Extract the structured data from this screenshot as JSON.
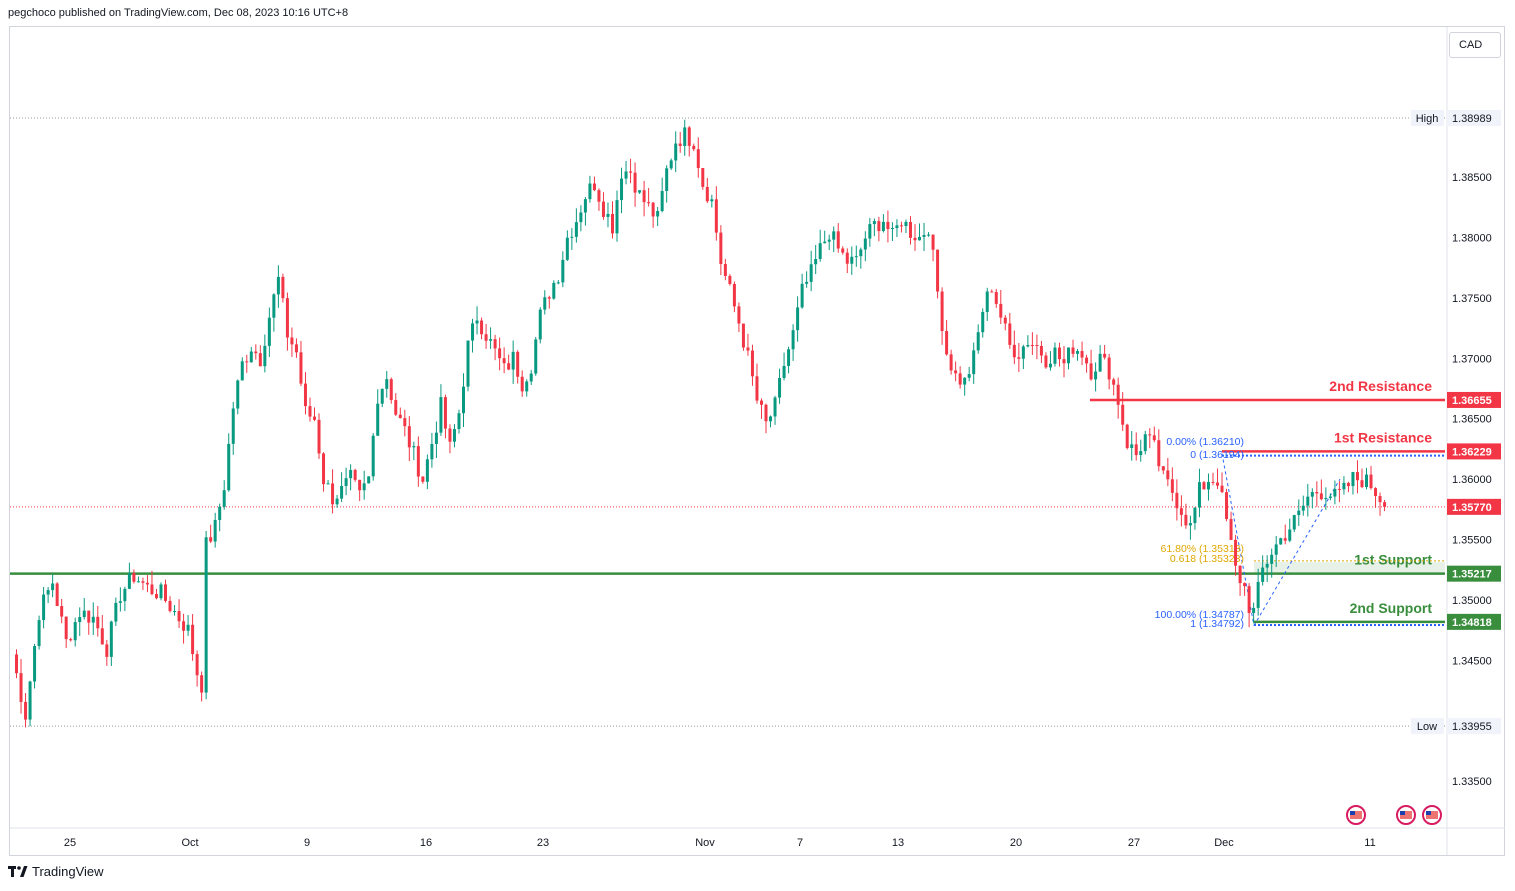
{
  "header": {
    "publish_text": "pegchoco published on TradingView.com, Dec 08, 2023 10:16 UTC+8",
    "currency": "CAD"
  },
  "footer": {
    "brand": "TradingView"
  },
  "colors": {
    "bull": "#089981",
    "bear": "#f23645",
    "resistance": "#f23645",
    "support": "#388e3c",
    "fib_blue": "#2962ff",
    "fib_gold": "#e0a800",
    "axis_text": "#131722",
    "high_low_line": "#9598a1"
  },
  "chart_data": {
    "type": "candlestick",
    "symbol_currency": "CAD",
    "y_axis": {
      "ylim": [
        1.3315,
        1.4065
      ],
      "tick_labels": [
        "1.38500",
        "1.38000",
        "1.37500",
        "1.37000",
        "1.36500",
        "1.36000",
        "1.35500",
        "1.35000",
        "1.34500",
        "1.33500"
      ]
    },
    "x_axis": {
      "tick_labels": [
        "25",
        "Oct",
        "9",
        "16",
        "23",
        "Nov",
        "7",
        "13",
        "20",
        "27",
        "Dec",
        "11"
      ]
    },
    "high": {
      "label": "High",
      "value": "1.38989"
    },
    "low": {
      "label": "Low",
      "value": "1.33955"
    },
    "current_price": "1.35770",
    "levels": [
      {
        "name": "2nd Resistance",
        "value": "1.36655",
        "kind": "resistance"
      },
      {
        "name": "1st Resistance",
        "value": "1.36229",
        "kind": "resistance"
      },
      {
        "name": "1st Support",
        "value": "1.35217",
        "kind": "support"
      },
      {
        "name": "2nd Support",
        "value": "1.34818",
        "kind": "support"
      }
    ],
    "fibonacci": [
      {
        "label": "0.00% (1.36210)",
        "color": "blue"
      },
      {
        "label": "0 (1.36194)",
        "color": "blue"
      },
      {
        "label": "61.80% (1.35313)",
        "color": "gold"
      },
      {
        "label": "0.618 (1.35323)",
        "color": "gold"
      },
      {
        "label": "100.00% (1.34787)",
        "color": "blue"
      },
      {
        "label": "1 (1.34792)",
        "color": "blue"
      }
    ],
    "price_path": [
      [
        0,
        1.3455
      ],
      [
        3,
        1.3405
      ],
      [
        6,
        1.349
      ],
      [
        9,
        1.3515
      ],
      [
        12,
        1.3465
      ],
      [
        15,
        1.349
      ],
      [
        18,
        1.3485
      ],
      [
        21,
        1.346
      ],
      [
        24,
        1.3505
      ],
      [
        27,
        1.352
      ],
      [
        30,
        1.351
      ],
      [
        33,
        1.3505
      ],
      [
        36,
        1.349
      ],
      [
        39,
        1.3475
      ],
      [
        41,
        1.344
      ],
      [
        42,
        1.343
      ],
      [
        43,
        1.3545
      ],
      [
        45,
        1.356
      ],
      [
        47,
        1.3595
      ],
      [
        49,
        1.366
      ],
      [
        51,
        1.3695
      ],
      [
        53,
        1.371
      ],
      [
        55,
        1.37
      ],
      [
        57,
        1.3735
      ],
      [
        59,
        1.3765
      ],
      [
        61,
        1.372
      ],
      [
        63,
        1.3705
      ],
      [
        65,
        1.3655
      ],
      [
        67,
        1.365
      ],
      [
        69,
        1.36
      ],
      [
        71,
        1.3585
      ],
      [
        73,
        1.359
      ],
      [
        75,
        1.36
      ],
      [
        77,
        1.3585
      ],
      [
        79,
        1.36
      ],
      [
        81,
        1.367
      ],
      [
        83,
        1.3685
      ],
      [
        85,
        1.3655
      ],
      [
        87,
        1.364
      ],
      [
        89,
        1.362
      ],
      [
        91,
        1.36
      ],
      [
        93,
        1.363
      ],
      [
        95,
        1.366
      ],
      [
        97,
        1.3625
      ],
      [
        99,
        1.3655
      ],
      [
        101,
        1.371
      ],
      [
        103,
        1.3735
      ],
      [
        105,
        1.372
      ],
      [
        107,
        1.3705
      ],
      [
        109,
        1.369
      ],
      [
        111,
        1.37
      ],
      [
        113,
        1.368
      ],
      [
        115,
        1.3695
      ],
      [
        117,
        1.3735
      ],
      [
        119,
        1.3755
      ],
      [
        121,
        1.377
      ],
      [
        123,
        1.38
      ],
      [
        125,
        1.3815
      ],
      [
        127,
        1.3835
      ],
      [
        129,
        1.3845
      ],
      [
        131,
        1.3825
      ],
      [
        133,
        1.381
      ],
      [
        135,
        1.3855
      ],
      [
        137,
        1.3855
      ],
      [
        139,
        1.3835
      ],
      [
        141,
        1.3825
      ],
      [
        143,
        1.3815
      ],
      [
        145,
        1.3855
      ],
      [
        147,
        1.388
      ],
      [
        149,
        1.3885
      ],
      [
        151,
        1.388
      ],
      [
        153,
        1.3845
      ],
      [
        155,
        1.383
      ],
      [
        157,
        1.378
      ],
      [
        159,
        1.3755
      ],
      [
        161,
        1.373
      ],
      [
        163,
        1.37
      ],
      [
        165,
        1.3665
      ],
      [
        167,
        1.3645
      ],
      [
        169,
        1.366
      ],
      [
        171,
        1.3695
      ],
      [
        173,
        1.372
      ],
      [
        175,
        1.3755
      ],
      [
        177,
        1.377
      ],
      [
        179,
        1.379
      ],
      [
        181,
        1.3805
      ],
      [
        183,
        1.379
      ],
      [
        185,
        1.378
      ],
      [
        187,
        1.378
      ],
      [
        189,
        1.38
      ],
      [
        191,
        1.381
      ],
      [
        193,
        1.3815
      ],
      [
        195,
        1.38
      ],
      [
        197,
        1.3815
      ],
      [
        199,
        1.3805
      ],
      [
        201,
        1.38
      ],
      [
        203,
        1.381
      ],
      [
        205,
        1.3755
      ],
      [
        207,
        1.3705
      ],
      [
        209,
        1.3685
      ],
      [
        211,
        1.368
      ],
      [
        213,
        1.37
      ],
      [
        215,
        1.374
      ],
      [
        217,
        1.376
      ],
      [
        219,
        1.3735
      ],
      [
        221,
        1.371
      ],
      [
        223,
        1.3705
      ],
      [
        225,
        1.3715
      ],
      [
        227,
        1.371
      ],
      [
        229,
        1.37
      ],
      [
        231,
        1.3705
      ],
      [
        233,
        1.3695
      ],
      [
        235,
        1.371
      ],
      [
        237,
        1.3705
      ],
      [
        239,
        1.369
      ],
      [
        241,
        1.37
      ],
      [
        243,
        1.369
      ],
      [
        245,
        1.3665
      ],
      [
        247,
        1.363
      ],
      [
        249,
        1.362
      ],
      [
        251,
        1.3635
      ],
      [
        253,
        1.3625
      ],
      [
        255,
        1.36
      ],
      [
        257,
        1.359
      ],
      [
        259,
        1.3575
      ],
      [
        261,
        1.356
      ],
      [
        263,
        1.359
      ],
      [
        265,
        1.36
      ],
      [
        267,
        1.36
      ],
      [
        269,
        1.3565
      ],
      [
        271,
        1.3525
      ],
      [
        273,
        1.351
      ],
      [
        274,
        1.3495
      ],
      [
        275,
        1.349
      ],
      [
        277,
        1.3525
      ],
      [
        279,
        1.354
      ],
      [
        281,
        1.355
      ],
      [
        283,
        1.356
      ],
      [
        285,
        1.357
      ],
      [
        287,
        1.3585
      ],
      [
        289,
        1.359
      ],
      [
        291,
        1.359
      ],
      [
        293,
        1.3585
      ],
      [
        295,
        1.359
      ],
      [
        297,
        1.36
      ],
      [
        299,
        1.36
      ],
      [
        301,
        1.3595
      ],
      [
        303,
        1.3585
      ],
      [
        304,
        1.3577
      ]
    ]
  }
}
